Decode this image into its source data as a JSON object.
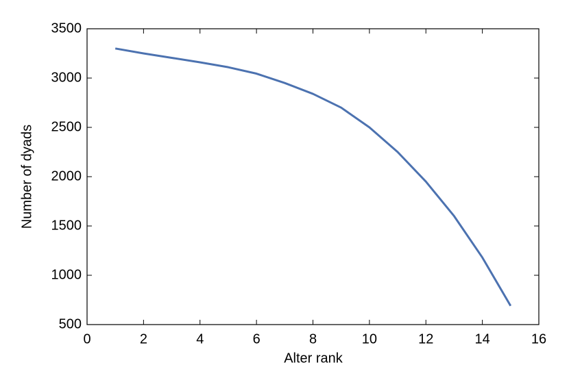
{
  "chart_data": {
    "type": "line",
    "x_label": "Alter rank",
    "y_label": "Number of dyads",
    "x": [
      1,
      2,
      3,
      4,
      5,
      6,
      7,
      8,
      9,
      10,
      11,
      12,
      13,
      14,
      15
    ],
    "series": [
      {
        "name": "dyads",
        "color": "#4c72b0",
        "values": [
          3300,
          3250,
          3205,
          3160,
          3110,
          3045,
          2950,
          2840,
          2700,
          2500,
          2250,
          1950,
          1600,
          1180,
          690
        ]
      }
    ],
    "xlim": [
      0,
      16
    ],
    "xticks": [
      0,
      2,
      4,
      6,
      8,
      10,
      12,
      14,
      16
    ],
    "ylim": [
      500,
      3500
    ],
    "yticks": [
      500,
      1000,
      1500,
      2000,
      2500,
      3000,
      3500
    ],
    "grid": false
  }
}
